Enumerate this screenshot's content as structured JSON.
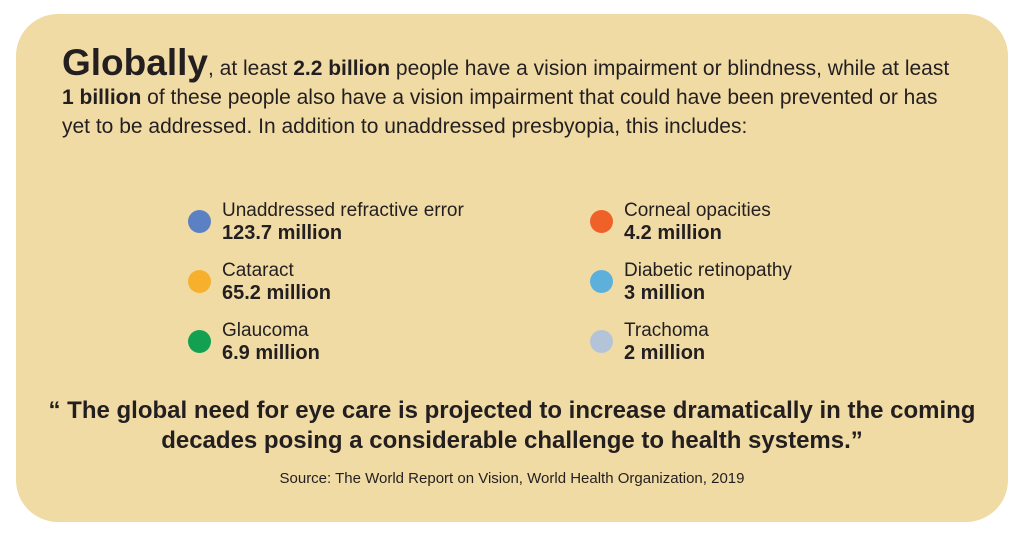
{
  "intro": {
    "lead": "Globally",
    "part1": ", at least ",
    "bold1": "2.2 billion",
    "part2": " people have a vision impairment or blindness, while at least ",
    "bold2": "1 billion",
    "part3": " of these people also have a vision impairment that could have been prevented or has yet to be addressed. In addition to unaddressed presbyopia, this includes:"
  },
  "items": [
    {
      "label": "Unaddressed refractive error",
      "value": "123.7 million",
      "color": "#5b80c4"
    },
    {
      "label": "Cataract",
      "value": "65.2 million",
      "color": "#f7b02c"
    },
    {
      "label": "Glaucoma",
      "value": "6.9 million",
      "color": "#12a150"
    },
    {
      "label": "Corneal opacities",
      "value": "4.2 million",
      "color": "#f0612a"
    },
    {
      "label": "Diabetic retinopathy",
      "value": "3 million",
      "color": "#5eb0dc"
    },
    {
      "label": "Trachoma",
      "value": "2 million",
      "color": "#b4c4d8"
    }
  ],
  "quote": "“ The global need for eye care is projected to increase dramatically in the coming decades posing a considerable challenge to health systems.”",
  "source": "Source: The World Report on Vision, World Health Organization, 2019"
}
